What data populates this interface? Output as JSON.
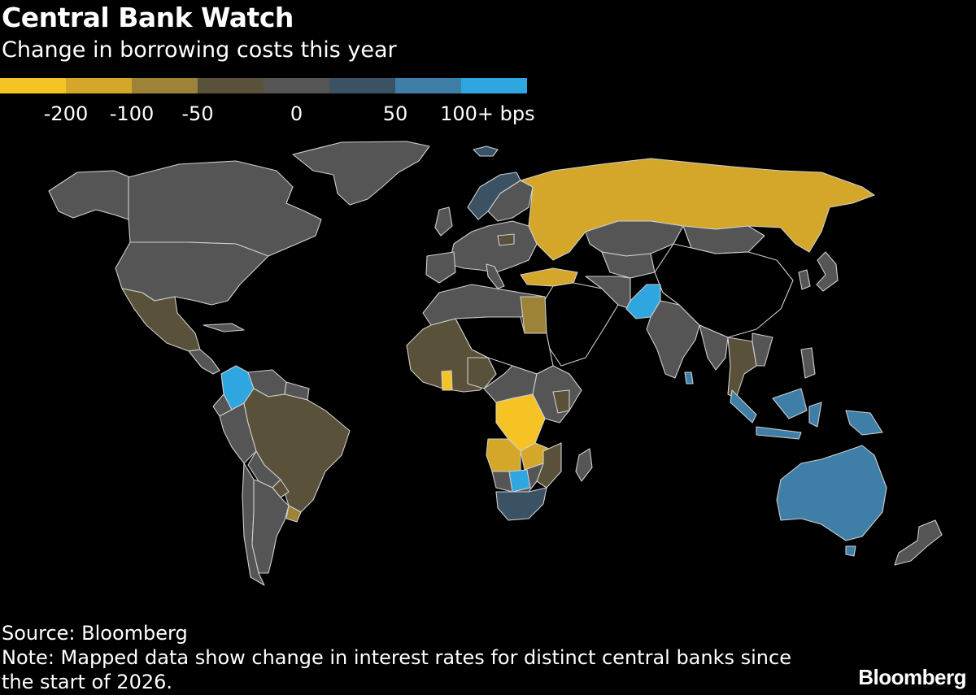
{
  "header": {
    "title": "Central Bank Watch",
    "subtitle": "Change in borrowing costs this year"
  },
  "legend": {
    "colors": [
      "#f6c324",
      "#d4a72a",
      "#9d8338",
      "#5a513a",
      "#555555",
      "#3b5265",
      "#3f7fa7",
      "#2fa6e0"
    ],
    "labels": [
      {
        "text": "-200",
        "boundary": 1
      },
      {
        "text": "-100",
        "boundary": 2
      },
      {
        "text": "-50",
        "boundary": 3
      },
      {
        "text": "0",
        "boundary": 4.5
      },
      {
        "text": "50",
        "boundary": 6
      },
      {
        "text": "100+ bps",
        "boundary": 7.4
      }
    ]
  },
  "map": {
    "colors": {
      "neutral": "#555555",
      "no_data": "#000000",
      "bright_yellow": "#f6c324",
      "gold": "#d4a72a",
      "mid_brown": "#9d8338",
      "dark_olive": "#5a513a",
      "steel_blue": "#3f7fa7",
      "dark_blue": "#3b5265",
      "bright_blue": "#2fa6e0"
    }
  },
  "footer": {
    "source": "Source: Bloomberg",
    "note": "Note: Mapped data show change in interest rates for distinct central banks since the start of 2026.",
    "logo": "Bloomberg"
  }
}
